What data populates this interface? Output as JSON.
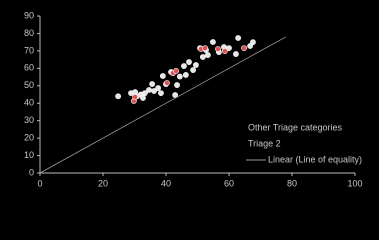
{
  "chart_data": {
    "type": "scatter",
    "xlim": [
      0,
      100
    ],
    "xticks": [
      0,
      20,
      40,
      60,
      80,
      100
    ],
    "ylim": [
      0,
      90
    ],
    "yticks": [
      0,
      10,
      20,
      30,
      40,
      50,
      60,
      70,
      80,
      90
    ],
    "legend": "lower right",
    "series": [
      {
        "name": "Other Triage categories",
        "color": "#e6e6e6",
        "x": [
          24.8,
          28.9,
          30.2,
          30.8,
          32,
          32.7,
          33.3,
          34.6,
          35.6,
          36.2,
          37.5,
          38.4,
          39,
          40,
          41.6,
          42.9,
          43.5,
          44.4,
          45.7,
          46.3,
          47.3,
          48.6,
          49.5,
          50.8,
          51.7,
          52.7,
          53.3,
          54.9,
          56.8,
          58.4,
          60,
          62.2,
          62.9,
          66.7,
          67.6
        ],
        "values": [
          44,
          45.8,
          46.4,
          44,
          45,
          43,
          45.8,
          47.6,
          51,
          47,
          48.7,
          45.8,
          55.6,
          51,
          57.9,
          44.7,
          50.4,
          55.3,
          61.3,
          56.2,
          63.6,
          59,
          61.9,
          71.6,
          66.5,
          70.5,
          67.6,
          75.1,
          69.3,
          72.2,
          71.6,
          68.2,
          77.4,
          72.8,
          75
        ]
      },
      {
        "name": "Triage 2",
        "color": "#e05050",
        "x": [
          29.8,
          30.2,
          40.3,
          42.2,
          43.2,
          51.1,
          52.4,
          56.5,
          58.7,
          64.8
        ],
        "values": [
          41.3,
          43.6,
          51.6,
          57.3,
          58.5,
          71.1,
          71.6,
          71.1,
          69.9,
          71.6
        ]
      },
      {
        "name": "Linear (Line of equality)",
        "color": "#9a9a9a",
        "line": true,
        "x": [
          0,
          78
        ],
        "values": [
          0,
          78
        ]
      }
    ]
  }
}
